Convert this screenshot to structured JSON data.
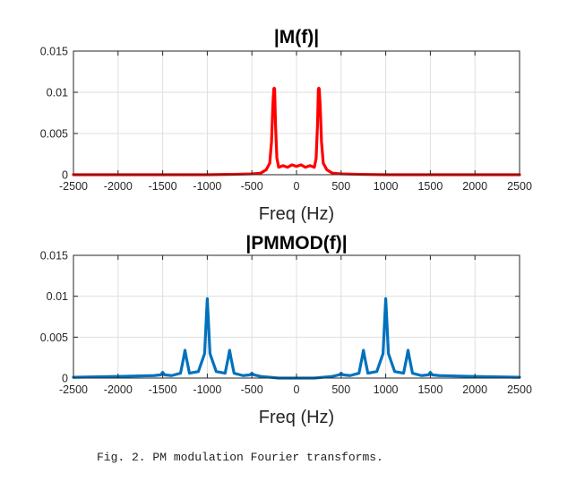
{
  "caption": "Fig. 2. PM modulation Fourier transforms.",
  "chart_data": [
    {
      "type": "line",
      "title": "|M(f)|",
      "xlabel": "Freq (Hz)",
      "ylabel": "",
      "xlim": [
        -2500,
        2500
      ],
      "ylim": [
        0,
        0.015
      ],
      "xticks": [
        "-2500",
        "-2000",
        "-1500",
        "-1000",
        "-500",
        "0",
        "500",
        "1000",
        "1500",
        "2000",
        "2500"
      ],
      "yticks": [
        "0",
        "0.005",
        "0.01",
        "0.015"
      ],
      "grid": true,
      "color": "#ff0000",
      "series": [
        {
          "name": "|M(f)|",
          "x": [
            -2500,
            -2000,
            -1500,
            -1000,
            -700,
            -500,
            -400,
            -340,
            -300,
            -280,
            -265,
            -255,
            -250,
            -245,
            -235,
            -220,
            -200,
            -150,
            -100,
            -50,
            0,
            50,
            100,
            150,
            200,
            220,
            235,
            245,
            250,
            255,
            265,
            280,
            300,
            340,
            400,
            500,
            700,
            1000,
            1500,
            2000,
            2500
          ],
          "y": [
            0.0,
            0.0,
            0.0,
            0.0,
            5e-05,
            0.0001,
            0.0002,
            0.0006,
            0.0014,
            0.004,
            0.0085,
            0.0104,
            0.0105,
            0.0104,
            0.006,
            0.002,
            0.0009,
            0.0011,
            0.0009,
            0.0012,
            0.001,
            0.0012,
            0.0009,
            0.0011,
            0.0009,
            0.002,
            0.006,
            0.0104,
            0.0105,
            0.0104,
            0.0085,
            0.004,
            0.0014,
            0.0006,
            0.0002,
            0.0001,
            5e-05,
            0.0,
            0.0,
            0.0,
            0.0
          ]
        }
      ]
    },
    {
      "type": "line",
      "title": "|PMMOD(f)|",
      "xlabel": "Freq (Hz)",
      "ylabel": "",
      "xlim": [
        -2500,
        2500
      ],
      "ylim": [
        0,
        0.015
      ],
      "xticks": [
        "-2500",
        "-2000",
        "-1500",
        "-1000",
        "-500",
        "0",
        "500",
        "1000",
        "1500",
        "2000",
        "2500"
      ],
      "yticks": [
        "0",
        "0.005",
        "0.01",
        "0.015"
      ],
      "grid": true,
      "color": "#0072bd",
      "series": [
        {
          "name": "|PMMOD(f)|",
          "x": [
            -2500,
            -2000,
            -1600,
            -1520,
            -1500,
            -1480,
            -1400,
            -1300,
            -1265,
            -1250,
            -1235,
            -1200,
            -1100,
            -1030,
            -1010,
            -1000,
            -990,
            -970,
            -900,
            -800,
            -765,
            -750,
            -735,
            -700,
            -600,
            -520,
            -500,
            -480,
            -400,
            -300,
            -200,
            -100,
            0,
            100,
            200,
            300,
            400,
            480,
            500,
            520,
            600,
            700,
            735,
            750,
            765,
            800,
            900,
            970,
            990,
            1000,
            1010,
            1030,
            1100,
            1200,
            1235,
            1250,
            1265,
            1300,
            1400,
            1480,
            1500,
            1520,
            1600,
            2000,
            2500
          ],
          "y": [
            0.0001,
            0.0002,
            0.0003,
            0.0004,
            0.0007,
            0.0004,
            0.0003,
            0.0006,
            0.0025,
            0.0034,
            0.0025,
            0.0006,
            0.0008,
            0.003,
            0.0075,
            0.0097,
            0.0075,
            0.003,
            0.0008,
            0.0006,
            0.0025,
            0.0034,
            0.0025,
            0.0006,
            0.0003,
            0.0004,
            0.0006,
            0.0004,
            0.0002,
            0.0001,
            0.0,
            0.0,
            0.0,
            0.0,
            0.0,
            0.0001,
            0.0002,
            0.0004,
            0.0006,
            0.0004,
            0.0003,
            0.0006,
            0.0025,
            0.0034,
            0.0025,
            0.0006,
            0.0008,
            0.003,
            0.0075,
            0.0097,
            0.0075,
            0.003,
            0.0008,
            0.0006,
            0.0025,
            0.0034,
            0.0025,
            0.0006,
            0.0003,
            0.0004,
            0.0007,
            0.0004,
            0.0003,
            0.0002,
            0.0001
          ]
        }
      ]
    }
  ]
}
